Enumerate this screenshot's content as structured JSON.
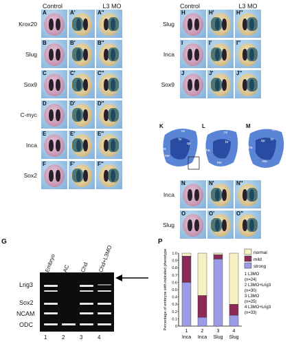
{
  "left_headers": {
    "control": "Control",
    "mo": "L3 MO"
  },
  "right_headers": {
    "control": "Control",
    "mo": "L3 MO"
  },
  "left_rows": [
    {
      "label": "Krox20",
      "letters": [
        "A",
        "A'",
        "A''"
      ]
    },
    {
      "label": "Slug",
      "letters": [
        "B",
        "B'",
        "B''"
      ]
    },
    {
      "label": "Sox9",
      "letters": [
        "C",
        "C'",
        "C''"
      ]
    },
    {
      "label": "C-myc",
      "letters": [
        "D",
        "D'",
        "D''"
      ]
    },
    {
      "label": "Inca",
      "letters": [
        "E",
        "E'",
        "E''"
      ]
    },
    {
      "label": "Sox2",
      "letters": [
        "F",
        "F'",
        "F''"
      ]
    }
  ],
  "right_rows": [
    {
      "label": "Slug",
      "letters": [
        "H",
        "H'",
        "H''"
      ]
    },
    {
      "label": "Inca",
      "letters": [
        "I",
        "I'",
        "I''"
      ]
    },
    {
      "label": "Sox9",
      "letters": [
        "J",
        "J'",
        "J''"
      ]
    }
  ],
  "cartilage": {
    "letters": [
      "K",
      "L",
      "M"
    ],
    "labels": [
      "ce",
      "br",
      "qu",
      "ba",
      "me",
      "ce",
      "br",
      "ba",
      "me",
      "ce",
      "br",
      "qu",
      "ba",
      "me"
    ]
  },
  "lower_right_rows": [
    {
      "label": "Inca",
      "letters": [
        "N",
        "N'",
        "N''"
      ]
    },
    {
      "label": "Slug",
      "letters": [
        "O",
        "O'",
        "O''"
      ]
    }
  ],
  "gel": {
    "panel_letter": "G",
    "lanes": [
      "Embryo",
      "AC",
      "Chd",
      "Chd+L3MO"
    ],
    "lane_numbers": [
      "1",
      "2",
      "3",
      "4"
    ],
    "genes": [
      "Lrig3",
      "Sox2",
      "NCAM",
      "ODC"
    ]
  },
  "chart_data": {
    "type": "bar",
    "panel_letter": "P",
    "ylabel": "Percentage of embryos with indicated phenotype",
    "ylim": [
      0,
      1.0
    ],
    "yticks": [
      "0",
      "0.1",
      "0.2",
      "0.3",
      "0.4",
      "0.5",
      "0.6",
      "0.7",
      "0.8",
      "0.9",
      "1.0"
    ],
    "categories": [
      "Inca",
      "Inca",
      "Slug",
      "Slug"
    ],
    "category_numbers": [
      "1",
      "2",
      "3",
      "4"
    ],
    "series": [
      {
        "name": "strong",
        "color": "#9b9be6",
        "values": [
          0.6,
          0.12,
          0.92,
          0.15
        ]
      },
      {
        "name": "mild",
        "color": "#8a2a55",
        "values": [
          0.36,
          0.3,
          0.06,
          0.15
        ]
      },
      {
        "name": "normal",
        "color": "#f6f1c2",
        "values": [
          0.04,
          0.58,
          0.02,
          0.7
        ]
      }
    ],
    "legend_labels": [
      "normal",
      "mild",
      "strong"
    ],
    "legend_position": "right",
    "notes": [
      "1 L3MO",
      "(n=24)",
      "2 L3MO+Lrig3",
      "(n=30)",
      "3 L3MO",
      "(n=25)",
      "4 L3MO+Lrig3",
      "(n=33)"
    ]
  }
}
